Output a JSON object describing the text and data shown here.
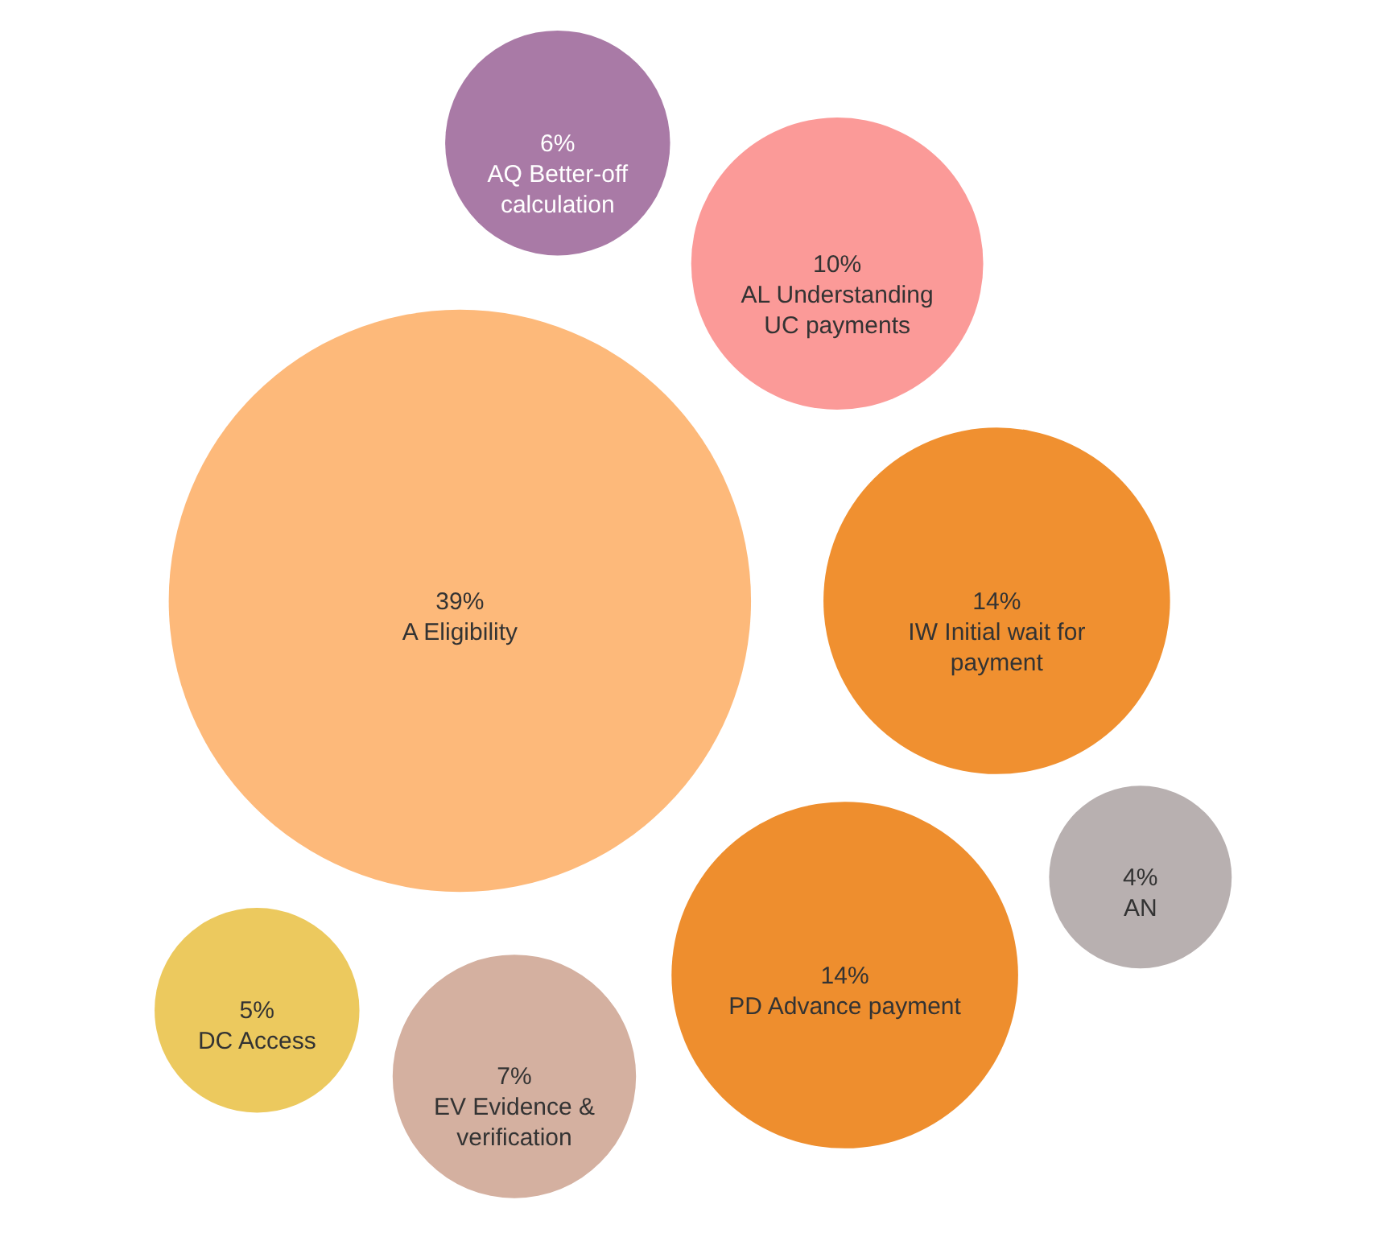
{
  "chart_data": {
    "type": "other",
    "categories": [
      "A Eligibility",
      "AQ Better-off calculation",
      "DC Access",
      "EV Evidence & verification",
      "AL Understanding UC payments",
      "AN",
      "IW Initial wait for payment",
      "PD Advance payment"
    ],
    "values": [
      39,
      6,
      5,
      7,
      10,
      4,
      14,
      14
    ],
    "value_labels": [
      "39%",
      "6%",
      "5%",
      "7%",
      "10%",
      "4%",
      "14%",
      "14%"
    ],
    "colors": [
      "#fdb97a",
      "#a97aa6",
      "#ecc95e",
      "#d4b0a0",
      "#fb9a98",
      "#b8b0b0",
      "#f09030",
      "#ee8e2e"
    ]
  }
}
